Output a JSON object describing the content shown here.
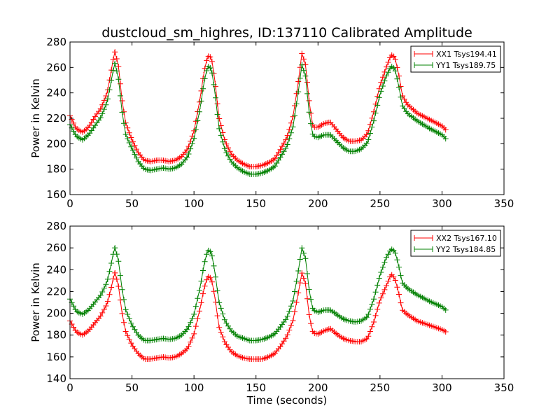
{
  "figure": {
    "title": "dustcloud_sm_highres, ID:137110 Calibrated Amplitude",
    "xlabel": "Time (seconds)"
  },
  "colors": {
    "background": "#ffffff",
    "axes": "#000000",
    "series_red": "#ff0000",
    "series_green": "#008000"
  },
  "chart_data": [
    {
      "type": "line",
      "marker": "plus",
      "xlim": [
        0,
        350
      ],
      "ylim": [
        160,
        280
      ],
      "xticks": [
        0,
        50,
        100,
        150,
        200,
        250,
        300,
        350
      ],
      "yticks": [
        160,
        180,
        200,
        220,
        240,
        260,
        280
      ],
      "xlabel": "",
      "ylabel": "Power in Kelvin",
      "grid": false,
      "legend_position": "top-right",
      "series": [
        {
          "name": "XX1 Tsys194.41",
          "color": "#ff0000",
          "x": [
            0,
            5,
            10,
            15,
            20,
            25,
            30,
            33,
            36,
            39,
            42,
            45,
            50,
            55,
            60,
            65,
            70,
            75,
            80,
            85,
            90,
            95,
            100,
            105,
            108,
            111,
            114,
            117,
            120,
            125,
            130,
            135,
            140,
            145,
            150,
            155,
            160,
            165,
            170,
            175,
            180,
            184,
            187,
            190,
            193,
            196,
            200,
            205,
            210,
            215,
            220,
            225,
            230,
            235,
            240,
            245,
            250,
            255,
            259,
            262,
            265,
            268,
            272,
            280,
            290,
            300,
            303
          ],
          "y": [
            222,
            212,
            209,
            213,
            221,
            228,
            240,
            256,
            273,
            262,
            234,
            216,
            203,
            193,
            187,
            186,
            187,
            187,
            186,
            187,
            190,
            196,
            210,
            236,
            256,
            269,
            268,
            249,
            221,
            202,
            192,
            187,
            184,
            182,
            182,
            183,
            185,
            188,
            196,
            205,
            222,
            248,
            271,
            262,
            232,
            213,
            213,
            216,
            217,
            211,
            205,
            202,
            202,
            203,
            208,
            225,
            246,
            260,
            270,
            268,
            255,
            238,
            231,
            224,
            219,
            214,
            211
          ]
        },
        {
          "name": "YY1 Tsys189.75",
          "color": "#008000",
          "x": [
            0,
            5,
            10,
            15,
            20,
            25,
            30,
            33,
            36,
            39,
            42,
            45,
            50,
            55,
            60,
            65,
            70,
            75,
            80,
            85,
            90,
            95,
            100,
            105,
            108,
            111,
            114,
            117,
            120,
            125,
            130,
            135,
            140,
            145,
            150,
            155,
            160,
            165,
            170,
            175,
            180,
            184,
            187,
            190,
            193,
            196,
            200,
            205,
            210,
            215,
            220,
            225,
            230,
            235,
            240,
            245,
            250,
            255,
            259,
            262,
            265,
            268,
            272,
            280,
            290,
            300,
            303
          ],
          "y": [
            215,
            206,
            203,
            207,
            214,
            221,
            233,
            248,
            264,
            252,
            225,
            207,
            196,
            186,
            180,
            179,
            180,
            181,
            180,
            181,
            184,
            190,
            204,
            228,
            248,
            261,
            259,
            240,
            213,
            195,
            186,
            181,
            178,
            176,
            176,
            177,
            179,
            182,
            190,
            198,
            214,
            240,
            262,
            253,
            223,
            206,
            205,
            207,
            207,
            202,
            197,
            194,
            194,
            196,
            201,
            218,
            239,
            253,
            261,
            259,
            246,
            230,
            224,
            218,
            212,
            207,
            204
          ]
        }
      ]
    },
    {
      "type": "line",
      "marker": "plus",
      "xlim": [
        0,
        350
      ],
      "ylim": [
        140,
        280
      ],
      "xticks": [
        0,
        50,
        100,
        150,
        200,
        250,
        300,
        350
      ],
      "yticks": [
        140,
        160,
        180,
        200,
        220,
        240,
        260,
        280
      ],
      "xlabel": "Time (seconds)",
      "ylabel": "Power in Kelvin",
      "grid": false,
      "legend_position": "top-right",
      "series": [
        {
          "name": "XX2 Tsys167.10",
          "color": "#ff0000",
          "x": [
            0,
            5,
            10,
            15,
            20,
            25,
            30,
            33,
            36,
            39,
            42,
            45,
            50,
            55,
            60,
            65,
            70,
            75,
            80,
            85,
            90,
            95,
            100,
            105,
            108,
            111,
            114,
            117,
            120,
            125,
            130,
            135,
            140,
            145,
            150,
            155,
            160,
            165,
            170,
            175,
            180,
            184,
            187,
            190,
            193,
            196,
            200,
            205,
            210,
            215,
            220,
            225,
            230,
            235,
            240,
            245,
            250,
            255,
            259,
            262,
            265,
            268,
            272,
            280,
            290,
            300,
            303
          ],
          "y": [
            193,
            183,
            180,
            184,
            191,
            198,
            209,
            222,
            238,
            226,
            200,
            183,
            171,
            163,
            158,
            158,
            159,
            160,
            159,
            160,
            163,
            168,
            181,
            205,
            222,
            234,
            232,
            214,
            188,
            173,
            165,
            161,
            159,
            158,
            158,
            158,
            160,
            163,
            170,
            179,
            194,
            218,
            237,
            227,
            197,
            182,
            181,
            184,
            186,
            181,
            177,
            175,
            174,
            174,
            177,
            192,
            212,
            225,
            236,
            232,
            219,
            203,
            199,
            193,
            189,
            185,
            183
          ]
        },
        {
          "name": "YY2 Tsys184.85",
          "color": "#008000",
          "x": [
            0,
            5,
            10,
            15,
            20,
            25,
            30,
            33,
            36,
            39,
            42,
            45,
            50,
            55,
            60,
            65,
            70,
            75,
            80,
            85,
            90,
            95,
            100,
            105,
            108,
            111,
            114,
            117,
            120,
            125,
            130,
            135,
            140,
            145,
            150,
            155,
            160,
            165,
            170,
            175,
            180,
            184,
            187,
            190,
            193,
            196,
            200,
            205,
            210,
            215,
            220,
            225,
            230,
            235,
            240,
            245,
            250,
            255,
            259,
            262,
            265,
            268,
            272,
            280,
            290,
            300,
            303
          ],
          "y": [
            213,
            202,
            199,
            203,
            210,
            217,
            229,
            244,
            261,
            249,
            222,
            203,
            189,
            180,
            175,
            175,
            176,
            177,
            176,
            177,
            180,
            186,
            199,
            224,
            244,
            258,
            256,
            237,
            211,
            193,
            184,
            179,
            177,
            175,
            175,
            176,
            178,
            181,
            188,
            196,
            212,
            238,
            260,
            250,
            220,
            203,
            201,
            203,
            203,
            199,
            195,
            193,
            192,
            193,
            197,
            213,
            235,
            251,
            259,
            257,
            244,
            228,
            223,
            217,
            211,
            206,
            203
          ]
        }
      ]
    }
  ]
}
